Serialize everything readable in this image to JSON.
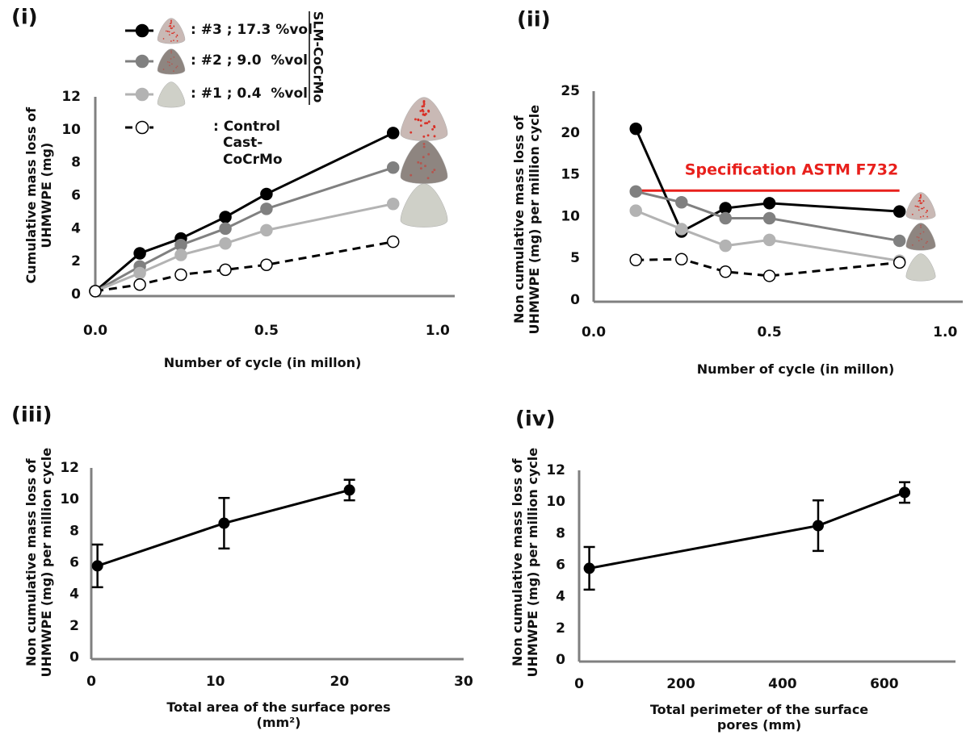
{
  "chart_data": [
    {
      "type": "line",
      "title": "(i)",
      "xlabel": "Number of cycle (in millon)",
      "ylabel": "Cumulative mass loss of UHMWPE (mg)",
      "xlim": [
        0,
        1.05
      ],
      "xticks": [
        {
          "value": 0,
          "label": "0.0"
        },
        {
          "value": 0.5,
          "label": "0.5"
        },
        {
          "value": 1,
          "label": "1.0"
        }
      ],
      "ylim": [
        0,
        12
      ],
      "yticks": [
        0,
        2,
        4,
        6,
        8,
        10,
        12
      ],
      "legend_title": "SLM-CoCrMo",
      "series": [
        {
          "name": ": #3 ; 17.3 %vol",
          "color": "#000000",
          "marker_fill": "#000000",
          "dashed": false,
          "x": [
            0,
            0.13,
            0.25,
            0.38,
            0.5,
            0.87
          ],
          "values": [
            0.2,
            2.5,
            3.4,
            4.7,
            6.1,
            9.8
          ]
        },
        {
          "name": ": #2 ; 9.0  %vol",
          "color": "#808080",
          "marker_fill": "#808080",
          "dashed": false,
          "x": [
            0,
            0.13,
            0.25,
            0.38,
            0.5,
            0.87
          ],
          "values": [
            0.2,
            1.7,
            3.0,
            4.0,
            5.2,
            7.7
          ]
        },
        {
          "name": ": #1 ; 0.4  %vol",
          "color": "#b3b3b3",
          "marker_fill": "#b3b3b3",
          "dashed": false,
          "x": [
            0,
            0.13,
            0.25,
            0.38,
            0.5,
            0.87
          ],
          "values": [
            0.2,
            1.3,
            2.4,
            3.1,
            3.9,
            5.5
          ]
        },
        {
          "name": ": Control Cast-CoCrMo",
          "color": "#000000",
          "marker_fill": "#ffffff",
          "dashed": true,
          "x": [
            0,
            0.13,
            0.25,
            0.38,
            0.5,
            0.87
          ],
          "values": [
            0.2,
            0.6,
            1.2,
            1.5,
            1.8,
            3.2
          ]
        }
      ]
    },
    {
      "type": "line",
      "title": "(ii)",
      "xlabel": "Number of cycle (in millon)",
      "ylabel": "Non cumulative mass loss of UHMWPE (mg) per million cycle",
      "xlim": [
        0,
        1.05
      ],
      "xticks": [
        {
          "value": 0,
          "label": "0.0"
        },
        {
          "value": 0.5,
          "label": "0.5"
        },
        {
          "value": 1,
          "label": "1.0"
        }
      ],
      "ylim": [
        0,
        25
      ],
      "yticks": [
        0,
        5,
        10,
        15,
        20,
        25
      ],
      "reference": {
        "label": "Specification ASTM F732",
        "value": 13.1,
        "color": "#e8201c"
      },
      "series": [
        {
          "color": "#000000",
          "marker_fill": "#000000",
          "dashed": false,
          "x": [
            0.12,
            0.25,
            0.375,
            0.5,
            0.87
          ],
          "values": [
            20.5,
            8.2,
            11.0,
            11.6,
            10.6
          ]
        },
        {
          "color": "#808080",
          "marker_fill": "#808080",
          "dashed": false,
          "x": [
            0.12,
            0.25,
            0.375,
            0.5,
            0.87
          ],
          "values": [
            13.0,
            11.7,
            9.8,
            9.8,
            7.1
          ]
        },
        {
          "color": "#b3b3b3",
          "marker_fill": "#b3b3b3",
          "dashed": false,
          "x": [
            0.12,
            0.25,
            0.375,
            0.5,
            0.87
          ],
          "values": [
            10.7,
            8.5,
            6.5,
            7.2,
            4.7
          ]
        },
        {
          "color": "#000000",
          "marker_fill": "#ffffff",
          "dashed": true,
          "x": [
            0.12,
            0.25,
            0.375,
            0.5,
            0.87
          ],
          "values": [
            4.8,
            4.9,
            3.4,
            2.9,
            4.5
          ]
        }
      ]
    },
    {
      "type": "errorbar",
      "title": "(iii)",
      "xlabel": "Total area of the surface pores (mm²)",
      "ylabel": "Non cumulative mass loss of UHMWPE (mg) per million cycle",
      "xlim": [
        0,
        30
      ],
      "xticks": [
        0,
        10,
        20,
        30
      ],
      "ylim": [
        0,
        12
      ],
      "yticks": [
        0,
        2,
        4,
        6,
        8,
        10,
        12
      ],
      "color": "#000000",
      "x": [
        0.5,
        10.7,
        20.8
      ],
      "values": [
        5.8,
        8.5,
        10.6
      ],
      "errors": [
        1.35,
        1.6,
        0.65
      ]
    },
    {
      "type": "errorbar",
      "title": "(iv)",
      "xlabel": "Total perimeter of the surface pores (mm)",
      "ylabel": "Non cumulative mass loss of UHMWPE (mg) per million cycle",
      "xlim": [
        0,
        740
      ],
      "xticks": [
        0,
        200,
        400,
        600
      ],
      "ylim": [
        0,
        12
      ],
      "yticks": [
        0,
        2,
        4,
        6,
        8,
        10,
        12
      ],
      "color": "#000000",
      "x": [
        20,
        470,
        640
      ],
      "values": [
        5.8,
        8.5,
        10.6
      ],
      "errors": [
        1.35,
        1.6,
        0.65
      ]
    }
  ]
}
